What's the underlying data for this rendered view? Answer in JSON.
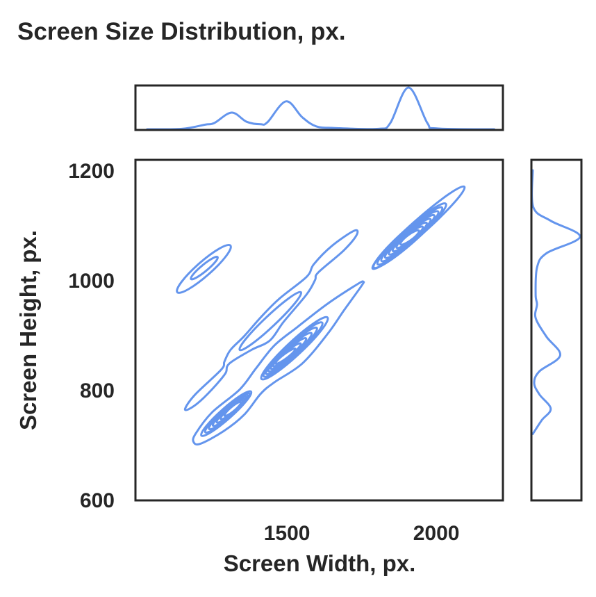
{
  "chart_data": {
    "type": "kde-joint",
    "title": "Screen Size Distribution, px.",
    "xlabel": "Screen Width, px.",
    "ylabel": "Screen Height, px.",
    "xlim": [
      993,
      2223
    ],
    "ylim": [
      600,
      1220
    ],
    "xticks": [
      1500,
      2000
    ],
    "yticks": [
      600,
      800,
      1000,
      1200
    ],
    "grid": false,
    "legend": "none",
    "color": "#6495ED",
    "axis_color": "#262626",
    "joint_contours": {
      "paths": [
        {
          "name": "ridge-outer-contour",
          "points": [
            [
              1160,
              768
            ],
            [
              1195,
              794
            ],
            [
              1280,
              838
            ],
            [
              1291,
              853
            ],
            [
              1311,
              874
            ],
            [
              1357,
              899
            ],
            [
              1412,
              933
            ],
            [
              1474,
              967
            ],
            [
              1566,
              1007
            ],
            [
              1590,
              1030
            ],
            [
              1652,
              1064
            ],
            [
              1725,
              1091
            ],
            [
              1733,
              1083
            ],
            [
              1690,
              1055
            ],
            [
              1605,
              1015
            ],
            [
              1594,
              1001
            ],
            [
              1566,
              975
            ],
            [
              1489,
              925
            ],
            [
              1443,
              891
            ],
            [
              1381,
              874
            ],
            [
              1307,
              849
            ],
            [
              1295,
              832
            ],
            [
              1264,
              811
            ],
            [
              1210,
              781
            ],
            [
              1171,
              766
            ]
          ]
        },
        {
          "name": "main-outer-contour",
          "points": [
            [
              1187,
              707
            ],
            [
              1195,
              722
            ],
            [
              1249,
              760
            ],
            [
              1342,
              802
            ],
            [
              1396,
              840
            ],
            [
              1458,
              882
            ],
            [
              1536,
              916
            ],
            [
              1636,
              958
            ],
            [
              1737,
              994
            ],
            [
              1756,
              998
            ],
            [
              1749,
              990
            ],
            [
              1691,
              946
            ],
            [
              1636,
              903
            ],
            [
              1551,
              849
            ],
            [
              1458,
              815
            ],
            [
              1412,
              794
            ],
            [
              1357,
              756
            ],
            [
              1288,
              726
            ],
            [
              1210,
              703
            ]
          ]
        }
      ],
      "clusters": [
        {
          "name": "cluster-1280x1024",
          "outer": {
            "p1": [
              1133,
              979
            ],
            "p2": [
              1311,
              1064
            ],
            "half_width": 13
          },
          "inner": {
            "p1": [
              1179,
              1003
            ],
            "p2": [
              1268,
              1043
            ],
            "half_width": 6
          },
          "levels": 2
        },
        {
          "name": "cluster-ridge-inner",
          "outer": {
            "p1": [
              1342,
              874
            ],
            "p2": [
              1547,
              979
            ],
            "half_width": 10
          },
          "inner": {
            "p1": [
              1342,
              874
            ],
            "p2": [
              1547,
              979
            ],
            "half_width": 10
          },
          "levels": 1
        },
        {
          "name": "cluster-1920x1080-outer",
          "outer": {
            "p1": [
              1787,
              1022
            ],
            "p2": [
              2094,
              1171
            ],
            "half_width": 13
          },
          "inner": {
            "p1": [
              1787,
              1022
            ],
            "p2": [
              2094,
              1171
            ],
            "half_width": 13
          },
          "levels": 1
        },
        {
          "name": "cluster-1920x1080",
          "outer": {
            "p1": [
              1791,
              1024
            ],
            "p2": [
              2032,
              1140
            ],
            "half_width": 13
          },
          "inner": {
            "p1": [
              1880,
              1066
            ],
            "p2": [
              1942,
              1091
            ],
            "half_width": 5
          },
          "levels": 8
        },
        {
          "name": "cluster-1366x768",
          "outer": {
            "p1": [
              1214,
              718
            ],
            "p2": [
              1380,
              798
            ],
            "half_width": 10
          },
          "inner": {
            "p1": [
              1291,
              754
            ],
            "p2": [
              1346,
              779
            ],
            "half_width": 4
          },
          "levels": 7
        },
        {
          "name": "cluster-1536x864",
          "outer": {
            "p1": [
              1415,
              821
            ],
            "p2": [
              1636,
              933
            ],
            "half_width": 13
          },
          "inner": {
            "p1": [
              1462,
              849
            ],
            "p2": [
              1528,
              876
            ],
            "half_width": 4
          },
          "levels": 7
        }
      ]
    },
    "marginal_x": {
      "x": [
        1032,
        1148,
        1226,
        1257,
        1315,
        1365,
        1412,
        1435,
        1497,
        1551,
        1598,
        1660,
        1807,
        1846,
        1907,
        1970,
        2001,
        2194
      ],
      "density": [
        0,
        0.01,
        0.11,
        0.15,
        0.4,
        0.18,
        0.12,
        0.17,
        0.67,
        0.29,
        0.07,
        0.03,
        0.01,
        0.15,
        1.0,
        0.15,
        0.02,
        0
      ]
    },
    "marginal_y": {
      "y": [
        1201,
        1134,
        1109,
        1080,
        1050,
        1024,
        974,
        957,
        932,
        898,
        864,
        835,
        814,
        793,
        767,
        746,
        721
      ],
      "density": [
        0,
        0.01,
        0.38,
        1.0,
        0.29,
        0.09,
        0.06,
        0.09,
        0.06,
        0.29,
        0.58,
        0.14,
        0.03,
        0.14,
        0.38,
        0.19,
        0
      ]
    }
  }
}
